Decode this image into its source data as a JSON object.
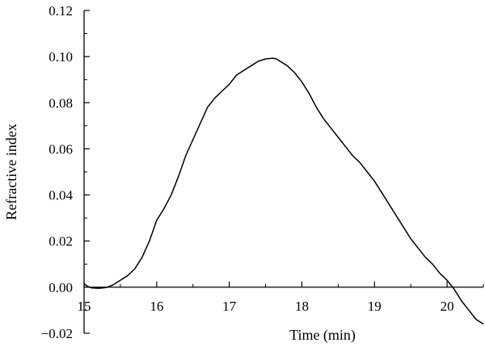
{
  "chart_data": {
    "type": "line",
    "title": "",
    "xlabel": "Time (min)",
    "ylabel": "Refractive index",
    "xlim": [
      15,
      20.5
    ],
    "ylim": [
      -0.02,
      0.12
    ],
    "grid": false,
    "legend": "none",
    "x_ticks": [
      {
        "value": 15,
        "label": "15"
      },
      {
        "value": 16,
        "label": "16"
      },
      {
        "value": 17,
        "label": "17"
      },
      {
        "value": 18,
        "label": "18"
      },
      {
        "value": 19,
        "label": "19"
      },
      {
        "value": 20,
        "label": "20"
      }
    ],
    "y_ticks": [
      {
        "value": -0.02,
        "label": "−0.02"
      },
      {
        "value": 0.0,
        "label": "0.00"
      },
      {
        "value": 0.02,
        "label": "0.02"
      },
      {
        "value": 0.04,
        "label": "0.04"
      },
      {
        "value": 0.06,
        "label": "0.06"
      },
      {
        "value": 0.08,
        "label": "0.08"
      },
      {
        "value": 0.1,
        "label": "0.10"
      },
      {
        "value": 0.12,
        "label": "0.12"
      }
    ],
    "line_color": "#000000",
    "series": [
      {
        "x": [
          15.0,
          15.05,
          15.1,
          15.2,
          15.3,
          15.4,
          15.5,
          15.6,
          15.7,
          15.8,
          15.9,
          16.0,
          16.1,
          16.2,
          16.3,
          16.4,
          16.5,
          16.6,
          16.7,
          16.8,
          16.9,
          17.0,
          17.1,
          17.2,
          17.3,
          17.4,
          17.5,
          17.6,
          17.65,
          17.7,
          17.8,
          17.9,
          18.0,
          18.1,
          18.2,
          18.3,
          18.4,
          18.5,
          18.6,
          18.7,
          18.8,
          18.9,
          19.0,
          19.1,
          19.2,
          19.3,
          19.4,
          19.5,
          19.6,
          19.7,
          19.8,
          19.9,
          20.0,
          20.1,
          20.2,
          20.3,
          20.4,
          20.5
        ],
        "y": [
          0.0015,
          0.0003,
          -0.0003,
          -0.0005,
          -0.0002,
          0.001,
          0.003,
          0.005,
          0.008,
          0.013,
          0.02,
          0.029,
          0.034,
          0.04,
          0.048,
          0.057,
          0.064,
          0.071,
          0.078,
          0.082,
          0.085,
          0.088,
          0.092,
          0.094,
          0.096,
          0.098,
          0.099,
          0.0993,
          0.099,
          0.098,
          0.096,
          0.093,
          0.089,
          0.084,
          0.078,
          0.073,
          0.069,
          0.065,
          0.061,
          0.057,
          0.054,
          0.05,
          0.046,
          0.041,
          0.036,
          0.031,
          0.026,
          0.021,
          0.017,
          0.013,
          0.01,
          0.006,
          0.003,
          -0.001,
          -0.006,
          -0.01,
          -0.014,
          -0.016
        ]
      }
    ]
  }
}
